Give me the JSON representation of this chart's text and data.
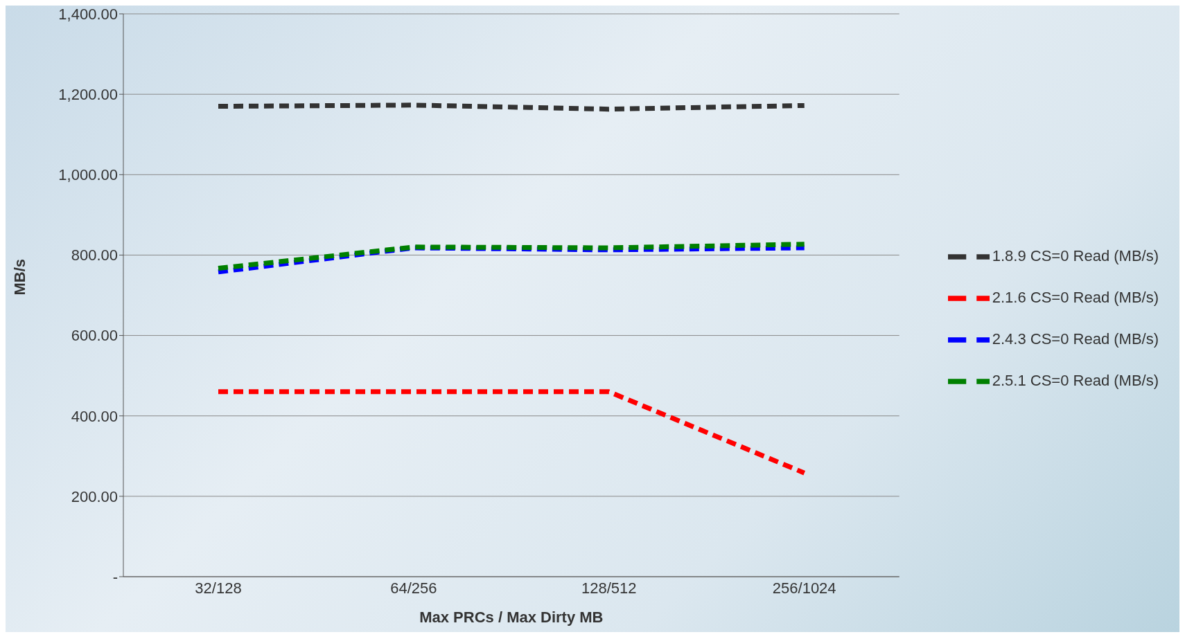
{
  "chart_data": {
    "type": "line",
    "xlabel": "Max PRCs / Max Dirty MB",
    "ylabel": "MB/s",
    "categories": [
      "32/128",
      "64/256",
      "128/512",
      "256/1024"
    ],
    "series": [
      {
        "name": "1.8.9 CS=0 Read (MB/s)",
        "color": "#333333",
        "values": [
          1170,
          1173,
          1163,
          1172
        ]
      },
      {
        "name": "2.1.6 CS=0 Read (MB/s)",
        "color": "#ff0000",
        "values": [
          460,
          460,
          460,
          258
        ]
      },
      {
        "name": "2.4.3 CS=0 Read (MB/s)",
        "color": "#0000ff",
        "values": [
          758,
          818,
          813,
          818
        ]
      },
      {
        "name": "2.5.1 CS=0 Read (MB/s)",
        "color": "#008000",
        "values": [
          767,
          820,
          818,
          827
        ]
      }
    ],
    "ylim": [
      0,
      1400
    ],
    "yticks": [
      {
        "value": 0,
        "label": "-"
      },
      {
        "value": 200,
        "label": "200.00"
      },
      {
        "value": 400,
        "label": "400.00"
      },
      {
        "value": 600,
        "label": "600.00"
      },
      {
        "value": 800,
        "label": "800.00"
      },
      {
        "value": 1000,
        "label": "1,000.00"
      },
      {
        "value": 1200,
        "label": "1,200.00"
      },
      {
        "value": 1400,
        "label": "1,400.00"
      }
    ],
    "grid": "y",
    "legend": "right",
    "marker": "none",
    "line_style": "dashed"
  }
}
